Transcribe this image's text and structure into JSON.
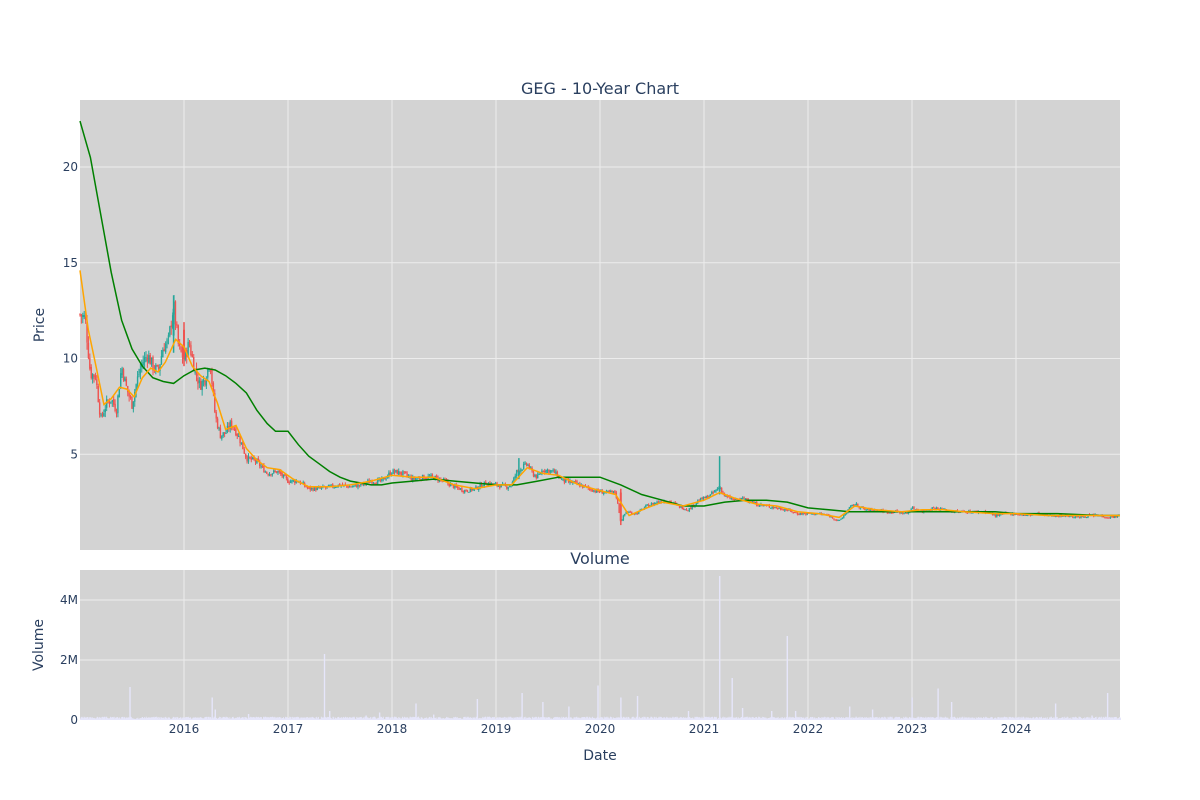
{
  "chart_data": {
    "type": "candlestick",
    "title": "GEG - 10-Year Chart",
    "xlabel": "Date",
    "x_ticks": [
      "2016",
      "2017",
      "2018",
      "2019",
      "2020",
      "2021",
      "2022",
      "2023",
      "2024"
    ],
    "xlim": [
      2015.0,
      2025.0
    ],
    "grid": true,
    "colors": {
      "plot_bg": "#d3d3d3",
      "grid": "#ececec",
      "up": "#26a69a",
      "down": "#ef5350",
      "ma_short": "#ffa500",
      "ma_long": "#008000",
      "volume": "#e6e6fa",
      "text": "#2a3f5f"
    },
    "price": {
      "ylabel": "Price",
      "ylim": [
        0.0,
        23.5
      ],
      "y_ticks": [
        5,
        10,
        15,
        20
      ],
      "close_series": [
        [
          2015.0,
          12.3
        ],
        [
          2015.05,
          12.1
        ],
        [
          2015.1,
          9.2
        ],
        [
          2015.15,
          9.1
        ],
        [
          2015.2,
          6.8
        ],
        [
          2015.25,
          7.6
        ],
        [
          2015.3,
          7.9
        ],
        [
          2015.35,
          7.3
        ],
        [
          2015.4,
          9.6
        ],
        [
          2015.45,
          8.4
        ],
        [
          2015.5,
          7.6
        ],
        [
          2015.55,
          8.9
        ],
        [
          2015.6,
          9.8
        ],
        [
          2015.65,
          10.2
        ],
        [
          2015.7,
          9.6
        ],
        [
          2015.75,
          9.3
        ],
        [
          2015.8,
          10.6
        ],
        [
          2015.85,
          10.9
        ],
        [
          2015.9,
          12.8
        ],
        [
          2015.95,
          10.5
        ],
        [
          2016.0,
          10.0
        ],
        [
          2016.05,
          10.8
        ],
        [
          2016.1,
          9.5
        ],
        [
          2016.15,
          8.6
        ],
        [
          2016.2,
          8.9
        ],
        [
          2016.25,
          9.9
        ],
        [
          2016.3,
          7.0
        ],
        [
          2016.35,
          6.0
        ],
        [
          2016.4,
          6.1
        ],
        [
          2016.45,
          6.6
        ],
        [
          2016.5,
          6.2
        ],
        [
          2016.55,
          5.6
        ],
        [
          2016.6,
          4.8
        ],
        [
          2016.7,
          4.6
        ],
        [
          2016.8,
          4.0
        ],
        [
          2016.9,
          4.1
        ],
        [
          2017.0,
          3.6
        ],
        [
          2017.1,
          3.6
        ],
        [
          2017.2,
          3.2
        ],
        [
          2017.3,
          3.2
        ],
        [
          2017.4,
          3.3
        ],
        [
          2017.5,
          3.4
        ],
        [
          2017.6,
          3.3
        ],
        [
          2017.7,
          3.4
        ],
        [
          2017.8,
          3.6
        ],
        [
          2017.9,
          3.6
        ],
        [
          2018.0,
          4.1
        ],
        [
          2018.1,
          4.0
        ],
        [
          2018.2,
          3.7
        ],
        [
          2018.3,
          3.8
        ],
        [
          2018.4,
          3.8
        ],
        [
          2018.5,
          3.6
        ],
        [
          2018.6,
          3.3
        ],
        [
          2018.7,
          3.1
        ],
        [
          2018.8,
          3.2
        ],
        [
          2018.9,
          3.5
        ],
        [
          2019.0,
          3.4
        ],
        [
          2019.1,
          3.3
        ],
        [
          2019.15,
          3.4
        ],
        [
          2019.2,
          4.1
        ],
        [
          2019.3,
          4.5
        ],
        [
          2019.35,
          4.0
        ],
        [
          2019.4,
          3.8
        ],
        [
          2019.45,
          4.2
        ],
        [
          2019.55,
          4.1
        ],
        [
          2019.65,
          3.6
        ],
        [
          2019.75,
          3.5
        ],
        [
          2019.85,
          3.3
        ],
        [
          2019.95,
          3.1
        ],
        [
          2020.05,
          3.0
        ],
        [
          2020.15,
          3.0
        ],
        [
          2020.2,
          1.5
        ],
        [
          2020.25,
          2.0
        ],
        [
          2020.35,
          1.9
        ],
        [
          2020.45,
          2.3
        ],
        [
          2020.55,
          2.5
        ],
        [
          2020.65,
          2.6
        ],
        [
          2020.75,
          2.3
        ],
        [
          2020.85,
          2.1
        ],
        [
          2020.95,
          2.6
        ],
        [
          2021.05,
          2.8
        ],
        [
          2021.15,
          3.3
        ],
        [
          2021.2,
          2.8
        ],
        [
          2021.3,
          2.6
        ],
        [
          2021.4,
          2.7
        ],
        [
          2021.5,
          2.4
        ],
        [
          2021.6,
          2.3
        ],
        [
          2021.7,
          2.2
        ],
        [
          2021.8,
          2.1
        ],
        [
          2021.9,
          1.9
        ],
        [
          2022.0,
          1.9
        ],
        [
          2022.1,
          1.9
        ],
        [
          2022.2,
          1.8
        ],
        [
          2022.3,
          1.5
        ],
        [
          2022.4,
          2.2
        ],
        [
          2022.45,
          2.4
        ],
        [
          2022.55,
          2.1
        ],
        [
          2022.65,
          2.1
        ],
        [
          2022.75,
          2.0
        ],
        [
          2022.85,
          2.0
        ],
        [
          2022.95,
          1.9
        ],
        [
          2023.0,
          2.2
        ],
        [
          2023.1,
          2.0
        ],
        [
          2023.2,
          2.2
        ],
        [
          2023.3,
          2.1
        ],
        [
          2023.4,
          2.0
        ],
        [
          2023.5,
          2.0
        ],
        [
          2023.6,
          2.0
        ],
        [
          2023.7,
          2.0
        ],
        [
          2023.8,
          1.8
        ],
        [
          2023.9,
          1.9
        ],
        [
          2024.0,
          1.9
        ],
        [
          2024.1,
          1.8
        ],
        [
          2024.2,
          1.9
        ],
        [
          2024.3,
          1.8
        ],
        [
          2024.4,
          1.8
        ],
        [
          2024.5,
          1.8
        ],
        [
          2024.6,
          1.7
        ],
        [
          2024.7,
          1.8
        ],
        [
          2024.8,
          1.8
        ],
        [
          2024.9,
          1.7
        ],
        [
          2025.0,
          1.8
        ]
      ],
      "spikes": [
        [
          2015.9,
          11.2,
          13.3,
          10.3,
          12.6
        ],
        [
          2016.0,
          11.5,
          11.9,
          9.6,
          10.1
        ],
        [
          2021.15,
          3.1,
          4.9,
          2.9,
          3.3
        ],
        [
          2020.2,
          3.0,
          3.2,
          1.3,
          1.5
        ],
        [
          2019.22,
          3.8,
          4.8,
          3.7,
          4.1
        ]
      ],
      "ma_short": [
        [
          2015.0,
          14.6
        ],
        [
          2015.08,
          11.5
        ],
        [
          2015.15,
          9.7
        ],
        [
          2015.23,
          7.6
        ],
        [
          2015.3,
          7.9
        ],
        [
          2015.38,
          8.5
        ],
        [
          2015.45,
          8.4
        ],
        [
          2015.52,
          8.0
        ],
        [
          2015.6,
          9.0
        ],
        [
          2015.68,
          9.5
        ],
        [
          2015.75,
          9.3
        ],
        [
          2015.82,
          9.8
        ],
        [
          2015.92,
          11.0
        ],
        [
          2016.0,
          10.6
        ],
        [
          2016.08,
          9.6
        ],
        [
          2016.16,
          9.1
        ],
        [
          2016.24,
          8.8
        ],
        [
          2016.32,
          7.7
        ],
        [
          2016.4,
          6.3
        ],
        [
          2016.5,
          6.5
        ],
        [
          2016.6,
          5.3
        ],
        [
          2016.7,
          4.7
        ],
        [
          2016.8,
          4.3
        ],
        [
          2016.92,
          4.2
        ],
        [
          2017.05,
          3.7
        ],
        [
          2017.2,
          3.3
        ],
        [
          2017.4,
          3.3
        ],
        [
          2017.6,
          3.4
        ],
        [
          2017.8,
          3.6
        ],
        [
          2018.0,
          3.9
        ],
        [
          2018.2,
          3.8
        ],
        [
          2018.4,
          3.8
        ],
        [
          2018.6,
          3.4
        ],
        [
          2018.8,
          3.2
        ],
        [
          2019.0,
          3.4
        ],
        [
          2019.15,
          3.4
        ],
        [
          2019.3,
          4.3
        ],
        [
          2019.45,
          4.0
        ],
        [
          2019.6,
          3.9
        ],
        [
          2019.8,
          3.4
        ],
        [
          2020.0,
          3.1
        ],
        [
          2020.15,
          2.9
        ],
        [
          2020.28,
          1.8
        ],
        [
          2020.45,
          2.2
        ],
        [
          2020.6,
          2.5
        ],
        [
          2020.8,
          2.3
        ],
        [
          2021.0,
          2.6
        ],
        [
          2021.15,
          3.0
        ],
        [
          2021.3,
          2.7
        ],
        [
          2021.5,
          2.4
        ],
        [
          2021.7,
          2.3
        ],
        [
          2021.9,
          2.0
        ],
        [
          2022.1,
          1.9
        ],
        [
          2022.3,
          1.7
        ],
        [
          2022.45,
          2.3
        ],
        [
          2022.65,
          2.1
        ],
        [
          2022.9,
          2.0
        ],
        [
          2023.1,
          2.1
        ],
        [
          2023.3,
          2.1
        ],
        [
          2023.5,
          2.0
        ],
        [
          2023.8,
          1.9
        ],
        [
          2024.0,
          1.9
        ],
        [
          2024.3,
          1.8
        ],
        [
          2024.6,
          1.8
        ],
        [
          2025.0,
          1.8
        ]
      ],
      "ma_long": [
        [
          2015.0,
          22.4
        ],
        [
          2015.1,
          20.5
        ],
        [
          2015.2,
          17.5
        ],
        [
          2015.3,
          14.5
        ],
        [
          2015.4,
          12.0
        ],
        [
          2015.5,
          10.5
        ],
        [
          2015.6,
          9.6
        ],
        [
          2015.7,
          9.0
        ],
        [
          2015.8,
          8.8
        ],
        [
          2015.9,
          8.7
        ],
        [
          2016.0,
          9.1
        ],
        [
          2016.1,
          9.4
        ],
        [
          2016.2,
          9.5
        ],
        [
          2016.3,
          9.4
        ],
        [
          2016.4,
          9.1
        ],
        [
          2016.5,
          8.7
        ],
        [
          2016.6,
          8.2
        ],
        [
          2016.7,
          7.3
        ],
        [
          2016.8,
          6.6
        ],
        [
          2016.88,
          6.2
        ],
        [
          2017.0,
          6.2
        ],
        [
          2017.1,
          5.5
        ],
        [
          2017.2,
          4.9
        ],
        [
          2017.3,
          4.5
        ],
        [
          2017.4,
          4.1
        ],
        [
          2017.5,
          3.8
        ],
        [
          2017.6,
          3.6
        ],
        [
          2017.7,
          3.5
        ],
        [
          2017.8,
          3.4
        ],
        [
          2017.9,
          3.4
        ],
        [
          2018.0,
          3.5
        ],
        [
          2018.2,
          3.6
        ],
        [
          2018.4,
          3.7
        ],
        [
          2018.6,
          3.6
        ],
        [
          2018.8,
          3.5
        ],
        [
          2019.0,
          3.4
        ],
        [
          2019.2,
          3.4
        ],
        [
          2019.4,
          3.6
        ],
        [
          2019.6,
          3.8
        ],
        [
          2019.8,
          3.8
        ],
        [
          2020.0,
          3.8
        ],
        [
          2020.2,
          3.4
        ],
        [
          2020.4,
          2.9
        ],
        [
          2020.6,
          2.6
        ],
        [
          2020.8,
          2.3
        ],
        [
          2021.0,
          2.3
        ],
        [
          2021.2,
          2.5
        ],
        [
          2021.4,
          2.6
        ],
        [
          2021.6,
          2.6
        ],
        [
          2021.8,
          2.5
        ],
        [
          2022.0,
          2.2
        ],
        [
          2022.2,
          2.1
        ],
        [
          2022.4,
          2.0
        ],
        [
          2022.6,
          2.0
        ],
        [
          2022.8,
          2.0
        ],
        [
          2023.0,
          2.0
        ],
        [
          2023.2,
          2.0
        ],
        [
          2023.4,
          2.0
        ],
        [
          2023.6,
          2.0
        ],
        [
          2023.8,
          2.0
        ],
        [
          2024.0,
          1.9
        ],
        [
          2024.4,
          1.9
        ],
        [
          2024.8,
          1.8
        ],
        [
          2025.0,
          1.8
        ]
      ]
    },
    "volume": {
      "title": "Volume",
      "ylabel": "Volume",
      "ylim": [
        0,
        5000000
      ],
      "y_ticks": [
        0,
        2000000,
        4000000
      ],
      "y_tick_labels": [
        "0",
        "2M",
        "4M"
      ],
      "bars": [
        [
          2015.48,
          1100000
        ],
        [
          2016.27,
          750000
        ],
        [
          2016.3,
          350000
        ],
        [
          2016.62,
          200000
        ],
        [
          2017.35,
          2200000
        ],
        [
          2017.4,
          300000
        ],
        [
          2017.75,
          150000
        ],
        [
          2017.88,
          250000
        ],
        [
          2018.23,
          550000
        ],
        [
          2018.4,
          180000
        ],
        [
          2018.82,
          700000
        ],
        [
          2019.25,
          900000
        ],
        [
          2019.45,
          600000
        ],
        [
          2019.7,
          450000
        ],
        [
          2019.98,
          1150000
        ],
        [
          2020.2,
          750000
        ],
        [
          2020.36,
          800000
        ],
        [
          2020.85,
          300000
        ],
        [
          2021.15,
          4800000
        ],
        [
          2021.27,
          1400000
        ],
        [
          2021.37,
          400000
        ],
        [
          2021.65,
          300000
        ],
        [
          2021.8,
          2800000
        ],
        [
          2021.88,
          300000
        ],
        [
          2022.4,
          450000
        ],
        [
          2022.62,
          350000
        ],
        [
          2023.0,
          750000
        ],
        [
          2023.25,
          1050000
        ],
        [
          2023.38,
          600000
        ],
        [
          2024.38,
          550000
        ],
        [
          2024.73,
          150000
        ],
        [
          2024.88,
          900000
        ]
      ]
    }
  }
}
